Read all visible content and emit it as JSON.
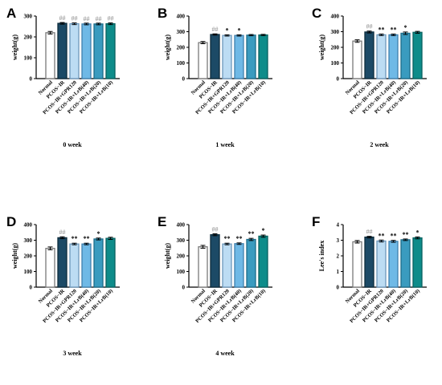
{
  "figure": {
    "categories": [
      "Normal",
      "PCOS−IR",
      "PCOS−IR+GPR120",
      "PCOS−IR+LrB(40)",
      "PCOS−IR+LrB(20)",
      "PCOS−IR+LrB(10)"
    ],
    "bar_colors": [
      "#ffffff",
      "#1c4a66",
      "#bcdcf3",
      "#6fb9e6",
      "#3a9bbf",
      "#0e8c8a"
    ],
    "edge_colors": [
      "#7a7a7a",
      "#0d2b3b",
      "#6c97bb",
      "#3e7fad",
      "#1d6d8a",
      "#086260"
    ]
  },
  "chart_data": [
    {
      "panel": "A",
      "type": "bar",
      "xlabel": "0 week",
      "ylabel": "weight(g)",
      "ylim": [
        0,
        300
      ],
      "yticks": [
        "0",
        "100",
        "200",
        "300"
      ],
      "ytick_values": [
        0,
        100,
        200,
        300
      ],
      "values": [
        220,
        265,
        263,
        262,
        262,
        263
      ],
      "errors": [
        6,
        4,
        4,
        4,
        4,
        4
      ],
      "marks": [
        "",
        "##",
        "##",
        "##",
        "##",
        "##"
      ]
    },
    {
      "panel": "B",
      "type": "bar",
      "xlabel": "1 week",
      "ylabel": "weight(g)",
      "ylim": [
        0,
        400
      ],
      "yticks": [
        "0",
        "100",
        "200",
        "300",
        "400"
      ],
      "ytick_values": [
        0,
        100,
        200,
        300,
        400
      ],
      "values": [
        230,
        282,
        276,
        276,
        278,
        279
      ],
      "errors": [
        7,
        4,
        4,
        4,
        4,
        4
      ],
      "marks": [
        "",
        "##",
        "*",
        "*",
        "",
        ""
      ]
    },
    {
      "panel": "C",
      "type": "bar",
      "xlabel": "2 week",
      "ylabel": "weight(g)",
      "ylim": [
        0,
        400
      ],
      "yticks": [
        "0",
        "100",
        "200",
        "300",
        "400"
      ],
      "ytick_values": [
        0,
        100,
        200,
        300,
        400
      ],
      "values": [
        240,
        298,
        280,
        280,
        290,
        296
      ],
      "errors": [
        8,
        6,
        5,
        5,
        8,
        6
      ],
      "marks": [
        "",
        "##",
        "**",
        "**",
        "*",
        ""
      ]
    },
    {
      "panel": "D",
      "type": "bar",
      "xlabel": "3 week",
      "ylabel": "weight(g)",
      "ylim": [
        0,
        400
      ],
      "yticks": [
        "0",
        "100",
        "200",
        "300",
        "400"
      ],
      "ytick_values": [
        0,
        100,
        200,
        300,
        400
      ],
      "values": [
        248,
        316,
        276,
        276,
        308,
        312
      ],
      "errors": [
        9,
        6,
        5,
        5,
        6,
        7
      ],
      "marks": [
        "",
        "##",
        "**",
        "**",
        "*",
        ""
      ]
    },
    {
      "panel": "E",
      "type": "bar",
      "xlabel": "4 week",
      "ylabel": "weight(g)",
      "ylim": [
        0,
        400
      ],
      "yticks": [
        "0",
        "100",
        "200",
        "300",
        "400"
      ],
      "ytick_values": [
        0,
        100,
        200,
        300,
        400
      ],
      "values": [
        258,
        335,
        276,
        278,
        305,
        326
      ],
      "errors": [
        9,
        6,
        5,
        5,
        7,
        7
      ],
      "marks": [
        "",
        "##",
        "**",
        "**",
        "**",
        "*"
      ]
    },
    {
      "panel": "F",
      "type": "bar",
      "xlabel": "",
      "ylabel": "Lee's index",
      "ylim": [
        0,
        4
      ],
      "yticks": [
        "0",
        "1",
        "2",
        "3",
        "4"
      ],
      "ytick_values": [
        0,
        1,
        2,
        3,
        4
      ],
      "values": [
        2.9,
        3.2,
        2.95,
        2.93,
        3.03,
        3.15
      ],
      "errors": [
        0.08,
        0.05,
        0.06,
        0.06,
        0.05,
        0.06
      ],
      "marks": [
        "",
        "##",
        "**",
        "**",
        "**",
        "*"
      ]
    }
  ]
}
